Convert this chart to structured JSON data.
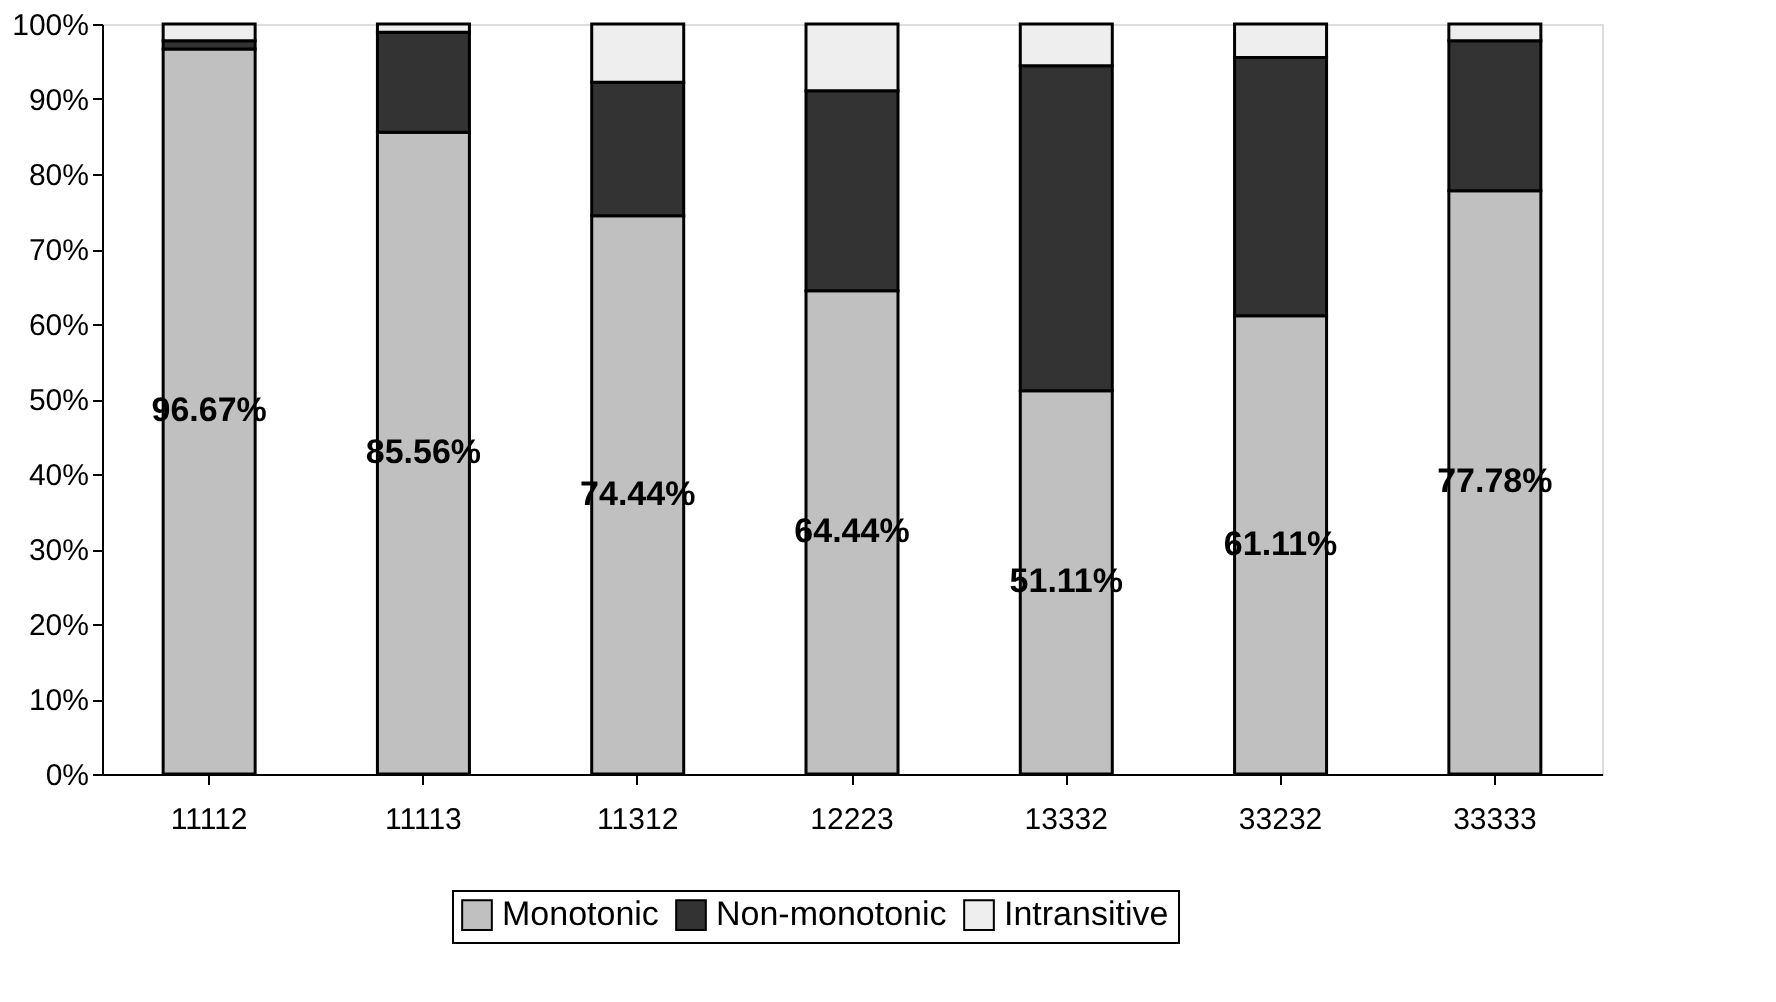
{
  "chart_data": {
    "type": "bar",
    "stacked": true,
    "categories": [
      "11112",
      "11113",
      "11312",
      "12223",
      "13332",
      "33232",
      "33333"
    ],
    "series": [
      {
        "name": "Monotonic",
        "color": "#c0c0c0",
        "values": [
          96.67,
          85.56,
          74.44,
          64.44,
          51.11,
          61.11,
          77.78
        ],
        "value_labels": [
          "96.67%",
          "85.56%",
          "74.44%",
          "64.44%",
          "51.11%",
          "61.11%",
          "77.78%"
        ]
      },
      {
        "name": "Non-monotonic",
        "color": "#333333",
        "values": [
          1.11,
          13.33,
          17.78,
          26.67,
          43.33,
          34.44,
          20.0
        ]
      },
      {
        "name": "Intransitive",
        "color": "#eeeeee",
        "values": [
          2.22,
          1.11,
          7.78,
          8.89,
          5.56,
          4.44,
          2.22
        ]
      }
    ],
    "ylim": [
      0,
      100
    ],
    "yticks": [
      {
        "value": 0,
        "label": "0%"
      },
      {
        "value": 10,
        "label": "10%"
      },
      {
        "value": 20,
        "label": "20%"
      },
      {
        "value": 30,
        "label": "30%"
      },
      {
        "value": 40,
        "label": "40%"
      },
      {
        "value": 50,
        "label": "50%"
      },
      {
        "value": 60,
        "label": "60%"
      },
      {
        "value": 70,
        "label": "70%"
      },
      {
        "value": 80,
        "label": "80%"
      },
      {
        "value": 90,
        "label": "90%"
      },
      {
        "value": 100,
        "label": "100%"
      }
    ],
    "grid": false,
    "legend": "bottom"
  }
}
